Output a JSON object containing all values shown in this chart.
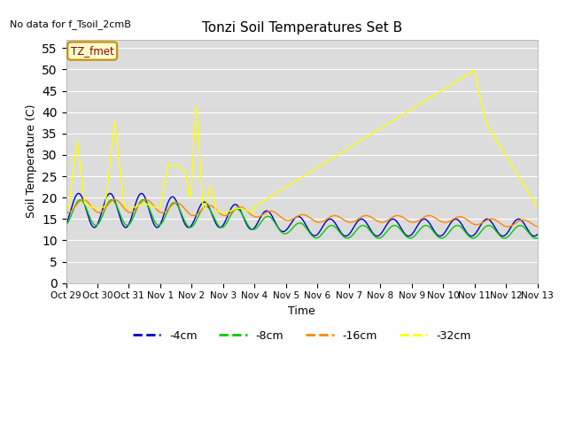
{
  "title": "Tonzi Soil Temperatures Set B",
  "xlabel": "Time",
  "ylabel": "Soil Temperature (C)",
  "no_data_label": "No data for f_Tsoil_2cmB",
  "annotation_label": "TZ_fmet",
  "ylim": [
    0,
    57
  ],
  "yticks": [
    0,
    5,
    10,
    15,
    20,
    25,
    30,
    35,
    40,
    45,
    50,
    55
  ],
  "xtick_labels": [
    "Oct 29",
    "Oct 30",
    "Oct 31",
    "Nov 1",
    "Nov 2",
    "Nov 3",
    "Nov 4",
    "Nov 5",
    "Nov 6",
    "Nov 7",
    "Nov 8",
    "Nov 9",
    "Nov 10",
    "Nov 11",
    "Nov 12",
    "Nov 13"
  ],
  "colors": {
    "4cm": "#0000cc",
    "8cm": "#00cc00",
    "16cm": "#ff8800",
    "32cm": "#ffff00"
  },
  "background_color": "#dcdcdc",
  "legend_labels": [
    "-4cm",
    "-8cm",
    "-16cm",
    "-32cm"
  ],
  "figsize": [
    6.4,
    4.8
  ],
  "dpi": 100
}
